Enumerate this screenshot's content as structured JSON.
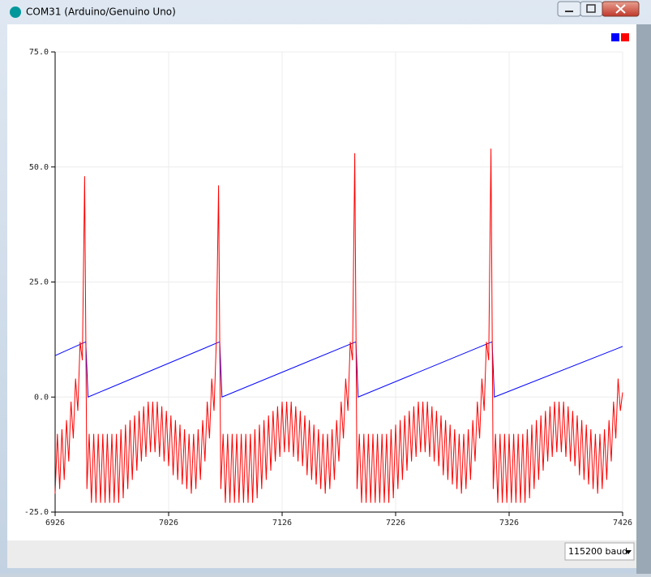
{
  "window": {
    "title": "COM31 (Arduino/Genuino Uno)"
  },
  "chart_data": {
    "type": "line",
    "xlim": [
      6926,
      7426
    ],
    "xticks": [
      6926,
      7026,
      7126,
      7226,
      7326,
      7426
    ],
    "ylim": [
      -25,
      75
    ],
    "yticks": [
      {
        "value": 75,
        "label": "75.0"
      },
      {
        "value": 50,
        "label": "50.0"
      },
      {
        "value": 25,
        "label": "25.0"
      },
      {
        "value": 0,
        "label": "0.0"
      },
      {
        "value": -25,
        "label": "-25.0"
      }
    ],
    "grid": true,
    "legend": "top-right",
    "series": [
      {
        "color": "#0000ff",
        "x": [
          6926,
          6953,
          6955,
          7071,
          7073,
          7191,
          7193,
          7311,
          7313,
          7426
        ],
        "values": [
          9,
          12,
          0,
          12,
          0,
          12,
          0,
          12,
          0,
          11
        ]
      },
      {
        "color": "#ff0000",
        "x": [
          6926,
          6928,
          6930,
          6932,
          6934,
          6936,
          6938,
          6940,
          6942,
          6944,
          6946,
          6948,
          6950,
          6952,
          6954,
          6956,
          6958,
          6960,
          6962,
          6964,
          6966,
          6968,
          6970,
          6972,
          6974,
          6976,
          6978,
          6980,
          6982,
          6984,
          6986,
          6988,
          6990,
          6992,
          6994,
          6996,
          6998,
          7000,
          7002,
          7004,
          7006,
          7008,
          7010,
          7012,
          7014,
          7016,
          7018,
          7020,
          7022,
          7024,
          7026,
          7028,
          7030,
          7032,
          7034,
          7036,
          7038,
          7040,
          7042,
          7044,
          7046,
          7048,
          7050,
          7052,
          7054,
          7056,
          7058,
          7060,
          7062,
          7064,
          7066,
          7068,
          7070,
          7072,
          7074,
          7076,
          7078,
          7080,
          7082,
          7084,
          7086,
          7088,
          7090,
          7092,
          7094,
          7096,
          7098,
          7100,
          7102,
          7104,
          7106,
          7108,
          7110,
          7112,
          7114,
          7116,
          7118,
          7120,
          7122,
          7124,
          7126,
          7128,
          7130,
          7132,
          7134,
          7136,
          7138,
          7140,
          7142,
          7144,
          7146,
          7148,
          7150,
          7152,
          7154,
          7156,
          7158,
          7160,
          7162,
          7164,
          7166,
          7168,
          7170,
          7172,
          7174,
          7176,
          7178,
          7180,
          7182,
          7184,
          7186,
          7188,
          7190,
          7192,
          7194,
          7196,
          7198,
          7200,
          7202,
          7204,
          7206,
          7208,
          7210,
          7212,
          7214,
          7216,
          7218,
          7220,
          7222,
          7224,
          7226,
          7228,
          7230,
          7232,
          7234,
          7236,
          7238,
          7240,
          7242,
          7244,
          7246,
          7248,
          7250,
          7252,
          7254,
          7256,
          7258,
          7260,
          7262,
          7264,
          7266,
          7268,
          7270,
          7272,
          7274,
          7276,
          7278,
          7280,
          7282,
          7284,
          7286,
          7288,
          7290,
          7292,
          7294,
          7296,
          7298,
          7300,
          7302,
          7304,
          7306,
          7308,
          7310,
          7312,
          7314,
          7316,
          7318,
          7320,
          7322,
          7324,
          7326,
          7328,
          7330,
          7332,
          7334,
          7336,
          7338,
          7340,
          7342,
          7344,
          7346,
          7348,
          7350,
          7352,
          7354,
          7356,
          7358,
          7360,
          7362,
          7364,
          7366,
          7368,
          7370,
          7372,
          7374,
          7376,
          7378,
          7380,
          7382,
          7384,
          7386,
          7388,
          7390,
          7392,
          7394,
          7396,
          7398,
          7400,
          7402,
          7404,
          7406,
          7408,
          7410,
          7412,
          7414,
          7416,
          7418,
          7420,
          7422,
          7424,
          7426
        ],
        "values": [
          -21,
          -8,
          -20,
          -7,
          -18,
          -5,
          -14,
          -1,
          -9,
          4,
          -3,
          12,
          8,
          48,
          -20,
          -8,
          -23,
          -8,
          -23,
          -8,
          -23,
          -8,
          -23,
          -8,
          -23,
          -8,
          -23,
          -8,
          -23,
          -7,
          -22,
          -6,
          -20,
          -5,
          -18,
          -4,
          -16,
          -3,
          -14,
          -2,
          -13,
          -1,
          -12,
          -1,
          -12,
          -1,
          -13,
          -2,
          -14,
          -3,
          -15,
          -4,
          -17,
          -5,
          -18,
          -6,
          -19,
          -7,
          -20,
          -8,
          -21,
          -8,
          -20,
          -7,
          -18,
          -5,
          -14,
          -1,
          -9,
          4,
          -3,
          12,
          46,
          -20,
          -8,
          -23,
          -8,
          -23,
          -8,
          -23,
          -8,
          -23,
          -8,
          -23,
          -8,
          -23,
          -8,
          -23,
          -7,
          -22,
          -6,
          -20,
          -5,
          -18,
          -4,
          -16,
          -3,
          -14,
          -2,
          -13,
          -1,
          -12,
          -1,
          -12,
          -1,
          -13,
          -2,
          -14,
          -3,
          -15,
          -4,
          -17,
          -5,
          -18,
          -6,
          -19,
          -7,
          -20,
          -8,
          -21,
          -8,
          -20,
          -7,
          -18,
          -5,
          -14,
          -1,
          -9,
          4,
          -3,
          12,
          8,
          53,
          -20,
          -8,
          -23,
          -8,
          -23,
          -8,
          -23,
          -8,
          -23,
          -8,
          -23,
          -8,
          -23,
          -8,
          -23,
          -7,
          -22,
          -6,
          -20,
          -5,
          -18,
          -4,
          -16,
          -3,
          -14,
          -2,
          -13,
          -1,
          -12,
          -1,
          -12,
          -1,
          -13,
          -2,
          -14,
          -3,
          -15,
          -4,
          -17,
          -5,
          -18,
          -6,
          -19,
          -7,
          -20,
          -8,
          -21,
          -8,
          -20,
          -7,
          -18,
          -5,
          -14,
          -1,
          -9,
          4,
          -3,
          12,
          8,
          54,
          -20,
          -8,
          -23,
          -8,
          -23,
          -8,
          -23,
          -8,
          -23,
          -8,
          -23,
          -8,
          -23,
          -8,
          -23,
          -7,
          -22,
          -6,
          -20,
          -5,
          -18,
          -4,
          -16,
          -3,
          -14,
          -2,
          -13,
          -1,
          -12,
          -1,
          -12,
          -1,
          -13,
          -2,
          -14,
          -3,
          -15,
          -4,
          -17,
          -5,
          -18,
          -6,
          -19,
          -7,
          -20,
          -8,
          -21,
          -8,
          -20,
          -7,
          -18,
          -5,
          -14,
          -1,
          -9,
          4,
          -3,
          1
        ]
      }
    ]
  },
  "baud_selector": "115200 baud"
}
